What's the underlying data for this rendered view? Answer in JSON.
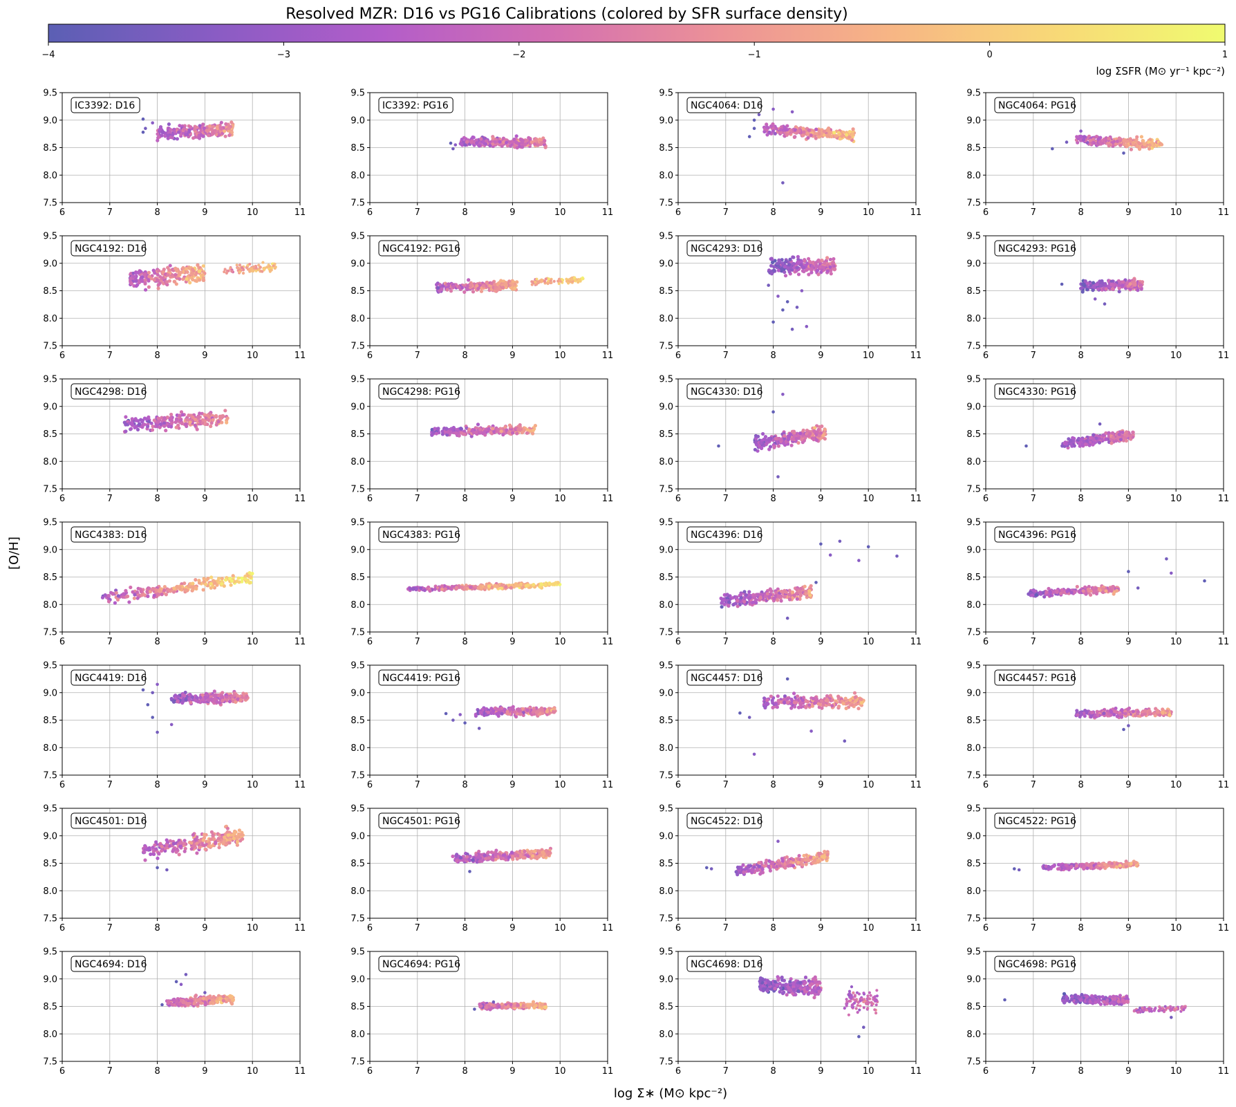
{
  "figure": {
    "title": "Resolved MZR: D16 vs PG16 Calibrations (colored by SFR surface density)",
    "xlabel": "log Σ∗ (M⊙ kpc⁻²)",
    "ylabel": "[O/H]"
  },
  "colorbar": {
    "label": "log ΣSFR (M⊙ yr⁻¹ kpc⁻²)",
    "range": [
      -4,
      1
    ],
    "ticks": [
      -4,
      -3,
      -2,
      -1,
      0,
      1
    ],
    "tick_labels": [
      "−4",
      "−3",
      "−2",
      "−1",
      "0",
      "1"
    ],
    "colormap": "plasma",
    "stops": [
      "#5b5fb4",
      "#8a5cc4",
      "#b35dc9",
      "#d36fb1",
      "#ec9297",
      "#f7b585",
      "#f8d977",
      "#f0fb70"
    ]
  },
  "chart_data": {
    "type": "scatter",
    "title": "Resolved MZR: D16 vs PG16 Calibrations (colored by SFR surface density)",
    "xlabel": "log Σ∗ (M⊙ kpc⁻²)",
    "ylabel": "[O/H]",
    "color_label": "log ΣSFR (M⊙ yr⁻¹ kpc⁻²)",
    "xlim": [
      6,
      11
    ],
    "ylim": [
      7.5,
      9.5
    ],
    "xticks": [
      6,
      7,
      8,
      9,
      10,
      11
    ],
    "yticks": [
      7.5,
      8.0,
      8.5,
      9.0,
      9.5
    ],
    "ytick_labels": [
      "7.5",
      "8.0",
      "8.5",
      "9.0",
      "9.5"
    ],
    "grid": true,
    "panels": [
      {
        "label": "IC3392: D16",
        "x_range": [
          8.0,
          9.6
        ],
        "y_center": 8.8,
        "y_spread": 0.12,
        "slope": 0.05,
        "c_range": [
          -3.2,
          -1.3
        ],
        "outliers": [
          [
            7.7,
            9.02
          ],
          [
            7.75,
            8.85
          ],
          [
            7.9,
            8.95
          ],
          [
            7.7,
            8.78
          ]
        ]
      },
      {
        "label": "IC3392: PG16",
        "x_range": [
          7.9,
          9.7
        ],
        "y_center": 8.6,
        "y_spread": 0.08,
        "slope": 0.0,
        "c_range": [
          -3.2,
          -1.3
        ],
        "outliers": [
          [
            7.7,
            8.58
          ],
          [
            7.75,
            8.48
          ],
          [
            7.8,
            8.55
          ]
        ]
      },
      {
        "label": "NGC4064: D16",
        "x_range": [
          7.8,
          9.7
        ],
        "y_center": 8.78,
        "y_spread": 0.1,
        "slope": -0.06,
        "c_range": [
          -3.4,
          -0.2
        ],
        "outliers": [
          [
            7.6,
            9.0
          ],
          [
            7.7,
            9.1
          ],
          [
            8.0,
            9.2
          ],
          [
            7.5,
            8.7
          ],
          [
            8.2,
            7.86
          ],
          [
            8.4,
            9.15
          ],
          [
            7.6,
            8.85
          ]
        ]
      },
      {
        "label": "NGC4064: PG16",
        "x_range": [
          7.9,
          9.7
        ],
        "y_center": 8.6,
        "y_spread": 0.08,
        "slope": -0.05,
        "c_range": [
          -3.4,
          -0.2
        ],
        "outliers": [
          [
            7.4,
            8.48
          ],
          [
            7.7,
            8.6
          ],
          [
            8.0,
            8.8
          ],
          [
            8.9,
            8.4
          ]
        ]
      },
      {
        "label": "NGC4192: D16",
        "x_range": [
          7.4,
          9.0
        ],
        "y_center": 8.78,
        "y_spread": 0.17,
        "slope": 0.08,
        "c_range": [
          -3.2,
          -0.4
        ],
        "x_range2": [
          9.4,
          10.5
        ],
        "y_center2": 8.9,
        "y_spread2": 0.08,
        "c_range2": [
          -1.6,
          0.0
        ]
      },
      {
        "label": "NGC4192: PG16",
        "x_range": [
          7.4,
          9.1
        ],
        "y_center": 8.58,
        "y_spread": 0.08,
        "slope": 0.02,
        "c_range": [
          -3.2,
          -0.5
        ],
        "x_range2": [
          9.4,
          10.5
        ],
        "y_center2": 8.68,
        "y_spread2": 0.05,
        "c_range2": [
          -1.2,
          0.2
        ]
      },
      {
        "label": "NGC4293: D16",
        "x_range": [
          7.9,
          9.3
        ],
        "y_center": 8.95,
        "y_spread": 0.14,
        "slope": 0.0,
        "c_range": [
          -3.8,
          -1.6
        ],
        "outliers": [
          [
            8.0,
            7.93
          ],
          [
            8.4,
            7.8
          ],
          [
            8.7,
            7.85
          ],
          [
            8.2,
            8.15
          ],
          [
            8.5,
            8.2
          ],
          [
            8.1,
            8.4
          ],
          [
            8.3,
            8.3
          ],
          [
            7.9,
            8.6
          ],
          [
            8.6,
            8.5
          ]
        ]
      },
      {
        "label": "NGC4293: PG16",
        "x_range": [
          8.0,
          9.3
        ],
        "y_center": 8.6,
        "y_spread": 0.09,
        "slope": 0.02,
        "c_range": [
          -3.8,
          -1.6
        ],
        "outliers": [
          [
            7.6,
            8.62
          ],
          [
            8.5,
            8.26
          ],
          [
            8.3,
            8.35
          ]
        ]
      },
      {
        "label": "NGC4298: D16",
        "x_range": [
          7.3,
          9.5
        ],
        "y_center": 8.72,
        "y_spread": 0.13,
        "slope": 0.06,
        "c_range": [
          -3.5,
          -1.0
        ]
      },
      {
        "label": "NGC4298: PG16",
        "x_range": [
          7.3,
          9.5
        ],
        "y_center": 8.56,
        "y_spread": 0.08,
        "slope": 0.02,
        "c_range": [
          -3.5,
          -1.0
        ]
      },
      {
        "label": "NGC4330: D16",
        "x_range": [
          7.6,
          9.1
        ],
        "y_center": 8.42,
        "y_spread": 0.12,
        "slope": 0.15,
        "c_range": [
          -3.6,
          -1.2
        ],
        "outliers": [
          [
            6.85,
            8.28
          ],
          [
            8.1,
            7.72
          ],
          [
            8.2,
            9.22
          ],
          [
            8.0,
            8.9
          ]
        ]
      },
      {
        "label": "NGC4330: PG16",
        "x_range": [
          7.6,
          9.1
        ],
        "y_center": 8.4,
        "y_spread": 0.09,
        "slope": 0.1,
        "c_range": [
          -3.6,
          -1.5
        ],
        "outliers": [
          [
            6.85,
            8.28
          ],
          [
            8.4,
            8.68
          ]
        ]
      },
      {
        "label": "NGC4383: D16",
        "x_range": [
          6.8,
          10.0
        ],
        "y_center": 8.3,
        "y_spread": 0.1,
        "slope": 0.12,
        "c_range": [
          -3.6,
          0.6
        ]
      },
      {
        "label": "NGC4383: PG16",
        "x_range": [
          6.8,
          10.0
        ],
        "y_center": 8.32,
        "y_spread": 0.04,
        "slope": 0.03,
        "c_range": [
          -3.6,
          0.6
        ]
      },
      {
        "label": "NGC4396: D16",
        "x_range": [
          6.9,
          8.8
        ],
        "y_center": 8.15,
        "y_spread": 0.12,
        "slope": 0.1,
        "c_range": [
          -3.5,
          -1.2
        ],
        "outliers": [
          [
            9.0,
            9.1
          ],
          [
            9.4,
            9.15
          ],
          [
            9.8,
            8.8
          ],
          [
            10.0,
            9.05
          ],
          [
            10.6,
            8.88
          ],
          [
            9.2,
            8.9
          ],
          [
            8.9,
            8.4
          ],
          [
            8.3,
            7.75
          ]
        ]
      },
      {
        "label": "NGC4396: PG16",
        "x_range": [
          6.9,
          8.8
        ],
        "y_center": 8.24,
        "y_spread": 0.06,
        "slope": 0.05,
        "c_range": [
          -3.5,
          -1.2
        ],
        "outliers": [
          [
            9.0,
            8.6
          ],
          [
            9.8,
            8.83
          ],
          [
            9.9,
            8.57
          ],
          [
            10.6,
            8.43
          ],
          [
            9.2,
            8.3
          ]
        ]
      },
      {
        "label": "NGC4419: D16",
        "x_range": [
          8.3,
          9.9
        ],
        "y_center": 8.9,
        "y_spread": 0.09,
        "slope": 0.02,
        "c_range": [
          -3.4,
          -1.4
        ],
        "outliers": [
          [
            7.7,
            9.05
          ],
          [
            7.9,
            9.0
          ],
          [
            8.0,
            9.15
          ],
          [
            7.8,
            8.78
          ],
          [
            8.0,
            8.28
          ],
          [
            8.3,
            8.42
          ],
          [
            7.9,
            8.55
          ]
        ]
      },
      {
        "label": "NGC4419: PG16",
        "x_range": [
          8.2,
          9.9
        ],
        "y_center": 8.66,
        "y_spread": 0.07,
        "slope": 0.0,
        "c_range": [
          -3.4,
          -1.0
        ],
        "outliers": [
          [
            7.6,
            8.62
          ],
          [
            7.75,
            8.5
          ],
          [
            7.9,
            8.6
          ],
          [
            8.0,
            8.45
          ],
          [
            8.3,
            8.35
          ]
        ]
      },
      {
        "label": "NGC4457: D16",
        "x_range": [
          7.8,
          9.9
        ],
        "y_center": 8.83,
        "y_spread": 0.11,
        "slope": 0.0,
        "c_range": [
          -3.3,
          -0.7
        ],
        "outliers": [
          [
            7.3,
            8.63
          ],
          [
            7.5,
            8.55
          ],
          [
            7.6,
            7.88
          ],
          [
            8.3,
            9.25
          ],
          [
            9.5,
            8.12
          ],
          [
            8.8,
            8.3
          ]
        ]
      },
      {
        "label": "NGC4457: PG16",
        "x_range": [
          7.9,
          9.9
        ],
        "y_center": 8.63,
        "y_spread": 0.07,
        "slope": 0.01,
        "c_range": [
          -3.3,
          -1.0
        ],
        "outliers": [
          [
            8.9,
            8.33
          ],
          [
            9.0,
            8.4
          ]
        ]
      },
      {
        "label": "NGC4501: D16",
        "x_range": [
          7.7,
          9.8
        ],
        "y_center": 8.87,
        "y_spread": 0.15,
        "slope": 0.14,
        "c_range": [
          -3.4,
          -0.6
        ],
        "outliers": [
          [
            8.0,
            8.42
          ],
          [
            8.2,
            8.38
          ]
        ]
      },
      {
        "label": "NGC4501: PG16",
        "x_range": [
          7.7,
          9.8
        ],
        "y_center": 8.63,
        "y_spread": 0.08,
        "slope": 0.05,
        "c_range": [
          -3.4,
          -0.9
        ],
        "outliers": [
          [
            8.1,
            8.35
          ]
        ]
      },
      {
        "label": "NGC4522: D16",
        "x_range": [
          7.2,
          9.2
        ],
        "y_center": 8.5,
        "y_spread": 0.1,
        "slope": 0.14,
        "c_range": [
          -3.5,
          -0.5
        ],
        "outliers": [
          [
            6.6,
            8.42
          ],
          [
            6.7,
            8.4
          ],
          [
            8.1,
            8.9
          ]
        ]
      },
      {
        "label": "NGC4522: PG16",
        "x_range": [
          7.2,
          9.2
        ],
        "y_center": 8.45,
        "y_spread": 0.05,
        "slope": 0.03,
        "c_range": [
          -3.5,
          -0.6
        ],
        "outliers": [
          [
            6.6,
            8.4
          ],
          [
            6.7,
            8.38
          ]
        ]
      },
      {
        "label": "NGC4694: D16",
        "x_range": [
          8.2,
          9.6
        ],
        "y_center": 8.6,
        "y_spread": 0.08,
        "slope": 0.06,
        "c_range": [
          -3.0,
          -0.3
        ],
        "outliers": [
          [
            8.1,
            8.53
          ],
          [
            8.6,
            9.08
          ],
          [
            8.5,
            8.9
          ],
          [
            8.4,
            8.95
          ],
          [
            9.0,
            8.75
          ]
        ]
      },
      {
        "label": "NGC4694: PG16",
        "x_range": [
          8.3,
          9.7
        ],
        "y_center": 8.51,
        "y_spread": 0.05,
        "slope": 0.0,
        "c_range": [
          -3.0,
          -0.5
        ],
        "outliers": [
          [
            8.2,
            8.45
          ],
          [
            8.6,
            8.58
          ]
        ]
      },
      {
        "label": "NGC4698: D16",
        "x_range": [
          7.7,
          9.0
        ],
        "y_center": 8.87,
        "y_spread": 0.15,
        "slope": -0.05,
        "c_range": [
          -3.7,
          -2.2
        ],
        "x_range2": [
          9.5,
          10.2
        ],
        "y_center2": 8.62,
        "y_spread2": 0.22,
        "c_range2": [
          -2.6,
          -1.8
        ],
        "outliers": [
          [
            9.8,
            7.95
          ],
          [
            9.9,
            8.12
          ]
        ]
      },
      {
        "label": "NGC4698: PG16",
        "x_range": [
          7.6,
          9.0
        ],
        "y_center": 8.63,
        "y_spread": 0.07,
        "slope": -0.02,
        "c_range": [
          -3.7,
          -2.2
        ],
        "x_range2": [
          9.1,
          10.2
        ],
        "y_center2": 8.45,
        "y_spread2": 0.05,
        "c_range2": [
          -2.6,
          -1.8
        ],
        "outliers": [
          [
            6.4,
            8.62
          ],
          [
            9.9,
            8.3
          ]
        ]
      }
    ]
  }
}
